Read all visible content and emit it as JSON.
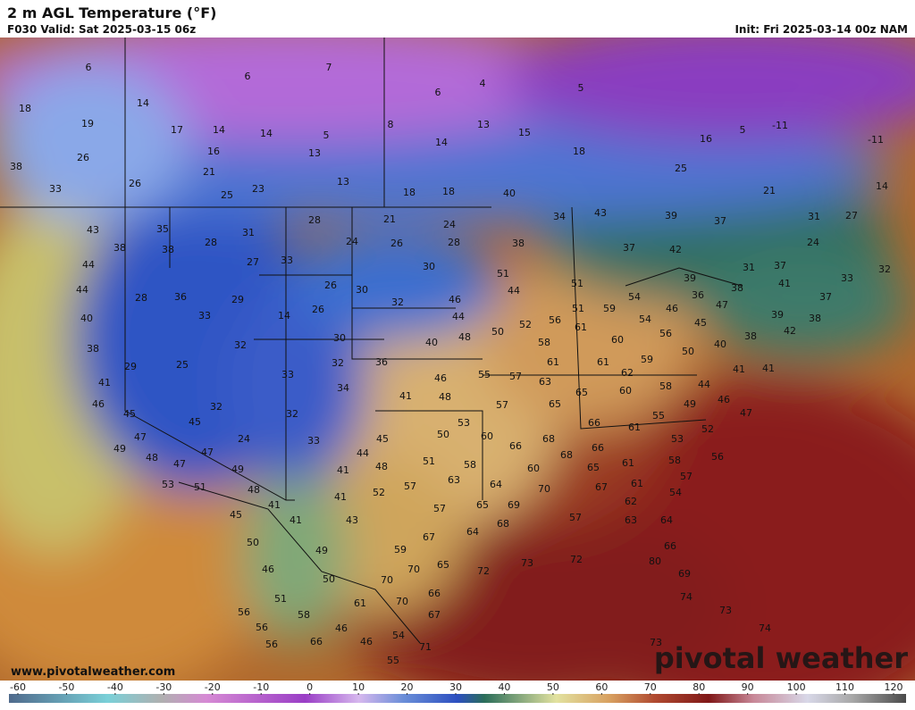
{
  "header": {
    "title": "2 m AGL Temperature (°F)",
    "valid": "F030 Valid: Sat 2025-03-15 06z",
    "init": "Init: Fri 2025-03-14 00z NAM"
  },
  "footer": {
    "site": "www.pivotalweather.com",
    "brand": "pivotal weather"
  },
  "colorbar": {
    "ticks": [
      -60,
      -50,
      -40,
      -30,
      -20,
      -10,
      0,
      10,
      20,
      30,
      40,
      50,
      60,
      70,
      80,
      90,
      100,
      110,
      120
    ]
  },
  "map": {
    "labels": [
      6,
      6,
      7,
      6,
      4,
      5,
      18,
      14,
      19,
      17,
      14,
      14,
      5,
      8,
      14,
      13,
      15,
      16,
      5,
      -11,
      -11,
      26,
      16,
      13,
      18,
      38,
      21,
      26,
      25,
      23,
      13,
      18,
      18,
      40,
      25,
      21,
      14,
      33,
      43,
      28,
      21,
      24,
      34,
      43,
      39,
      37,
      31,
      27,
      35,
      31,
      28,
      24,
      26,
      28,
      38,
      37,
      42,
      24,
      38,
      38,
      44,
      33,
      27,
      30,
      51,
      31,
      37,
      33,
      32,
      44,
      28,
      36,
      29,
      26,
      30,
      32,
      46,
      44,
      51,
      54,
      39,
      36,
      38,
      41,
      37,
      40,
      33,
      14,
      26,
      44,
      52,
      56,
      51,
      59,
      54,
      46,
      47,
      39,
      38,
      50,
      61,
      60,
      56,
      45,
      42,
      38,
      40,
      30,
      40,
      48,
      58,
      50,
      32,
      38,
      29,
      25,
      32,
      36,
      55,
      57,
      61,
      61,
      59,
      62,
      41,
      41,
      41,
      33,
      34,
      46,
      63,
      65,
      60,
      58,
      44,
      46,
      41,
      48,
      57,
      65,
      49,
      46,
      45,
      32,
      32,
      53,
      66,
      55,
      61,
      47,
      52,
      45,
      24,
      33,
      50,
      60,
      66,
      68,
      66,
      53,
      47,
      49,
      47,
      45,
      44,
      56,
      48,
      58,
      51,
      49,
      41,
      48,
      68,
      65,
      61,
      58,
      47,
      63,
      64,
      60,
      70,
      67,
      61,
      57,
      53,
      51,
      48,
      52,
      57,
      54,
      41,
      69,
      65,
      62,
      41,
      57,
      45,
      43,
      41,
      68,
      57,
      63,
      64,
      50,
      67,
      64,
      49,
      59,
      66,
      46,
      70,
      65,
      72,
      73,
      72,
      69,
      80,
      50,
      70,
      66,
      70,
      61,
      74,
      51,
      67,
      73,
      56,
      58,
      56,
      74,
      46,
      54,
      46,
      56,
      66,
      73,
      71,
      55
    ]
  }
}
